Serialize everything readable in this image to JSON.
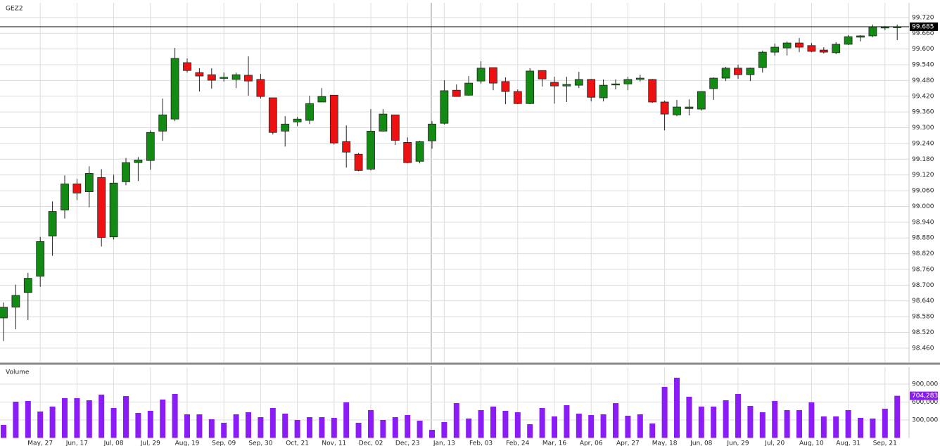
{
  "chart_data": [
    {
      "type": "candlestick",
      "title": "GEZ2",
      "categories": [
        null,
        null,
        null,
        "May, 27",
        null,
        null,
        "Jun, 17",
        null,
        null,
        "Jul, 08",
        null,
        null,
        "Jul, 29",
        null,
        null,
        "Aug, 19",
        null,
        null,
        "Sep, 09",
        null,
        null,
        "Sep, 30",
        null,
        null,
        "Oct, 21",
        null,
        null,
        "Nov, 11",
        null,
        null,
        "Dec, 02",
        null,
        null,
        "Dec, 23",
        null,
        null,
        "Jan, 13",
        null,
        null,
        "Feb, 03",
        null,
        null,
        "Feb, 24",
        null,
        null,
        "Mar, 16",
        null,
        null,
        "Apr, 06",
        null,
        null,
        "Apr, 27",
        null,
        null,
        "May, 18",
        null,
        null,
        "Jun, 08",
        null,
        null,
        "Jun, 29",
        null,
        null,
        "Jul, 20",
        null,
        null,
        "Aug, 10",
        null,
        null,
        "Aug, 31",
        null,
        null,
        "Sep, 21",
        null
      ],
      "open": [
        98.575,
        98.616,
        98.672,
        98.734,
        98.887,
        98.986,
        99.086,
        99.056,
        99.11,
        98.884,
        99.094,
        99.167,
        99.175,
        99.287,
        99.333,
        99.548,
        99.51,
        99.502,
        99.489,
        99.484,
        99.5,
        99.484,
        99.414,
        99.287,
        99.322,
        99.328,
        99.398,
        99.424,
        99.247,
        99.199,
        99.142,
        99.287,
        99.349,
        99.244,
        99.172,
        99.25,
        99.317,
        99.443,
        99.424,
        99.478,
        99.529,
        99.476,
        99.438,
        99.392,
        99.518,
        99.473,
        99.459,
        99.462,
        99.484,
        99.414,
        99.465,
        99.467,
        99.484,
        99.484,
        99.398,
        99.349,
        99.373,
        99.371,
        99.449,
        99.489,
        99.527,
        99.502,
        99.529,
        99.588,
        99.604,
        99.623,
        99.613,
        99.596,
        99.586,
        99.618,
        99.645,
        99.65,
        99.68,
        99.683
      ],
      "high": [
        98.634,
        98.702,
        98.747,
        98.884,
        99.019,
        99.118,
        99.105,
        99.153,
        99.142,
        99.121,
        99.185,
        99.188,
        99.29,
        99.411,
        99.604,
        99.564,
        99.527,
        99.527,
        99.51,
        99.51,
        99.572,
        99.505,
        99.414,
        99.344,
        99.341,
        99.422,
        99.451,
        99.424,
        99.309,
        99.204,
        99.371,
        99.371,
        99.349,
        99.263,
        99.25,
        99.325,
        99.481,
        99.465,
        99.497,
        99.553,
        99.529,
        99.492,
        99.446,
        99.527,
        99.518,
        99.494,
        99.494,
        99.513,
        99.486,
        99.484,
        99.484,
        99.494,
        99.502,
        99.486,
        99.403,
        99.406,
        99.408,
        99.438,
        99.492,
        99.532,
        99.54,
        99.529,
        99.594,
        99.621,
        99.629,
        99.642,
        99.623,
        99.607,
        99.626,
        99.653,
        99.653,
        99.693,
        99.688,
        99.693
      ],
      "low": [
        98.487,
        98.532,
        98.567,
        98.694,
        98.812,
        98.954,
        99.024,
        98.997,
        98.847,
        98.874,
        99.081,
        99.097,
        99.14,
        99.25,
        99.325,
        99.51,
        99.438,
        99.449,
        99.476,
        99.451,
        99.422,
        99.411,
        99.274,
        99.228,
        99.306,
        99.314,
        99.398,
        99.236,
        99.148,
        99.134,
        99.137,
        99.285,
        99.234,
        99.164,
        99.164,
        99.22,
        99.312,
        99.419,
        99.422,
        99.467,
        99.443,
        99.39,
        99.39,
        99.39,
        99.457,
        99.392,
        99.398,
        99.451,
        99.4,
        99.4,
        99.446,
        99.443,
        99.476,
        99.395,
        99.29,
        99.344,
        99.347,
        99.365,
        99.406,
        99.478,
        99.486,
        99.478,
        99.51,
        99.575,
        99.575,
        99.588,
        99.588,
        99.583,
        99.58,
        99.615,
        99.629,
        99.645,
        99.672,
        99.634
      ],
      "close": [
        98.616,
        98.661,
        98.726,
        98.866,
        98.981,
        99.086,
        99.051,
        99.126,
        98.882,
        99.089,
        99.167,
        99.177,
        99.282,
        99.349,
        99.564,
        99.518,
        99.497,
        99.481,
        99.492,
        99.502,
        99.478,
        99.419,
        99.282,
        99.314,
        99.333,
        99.392,
        99.419,
        99.242,
        99.207,
        99.137,
        99.287,
        99.352,
        99.252,
        99.167,
        99.247,
        99.314,
        99.441,
        99.419,
        99.47,
        99.527,
        99.47,
        99.438,
        99.392,
        99.516,
        99.486,
        99.459,
        99.465,
        99.484,
        99.416,
        99.462,
        99.467,
        99.484,
        99.489,
        99.398,
        99.352,
        99.379,
        99.379,
        99.438,
        99.489,
        99.527,
        99.502,
        99.527,
        99.588,
        99.607,
        99.623,
        99.607,
        99.591,
        99.588,
        99.618,
        99.647,
        99.65,
        99.685,
        99.685,
        99.685
      ],
      "up_color": "#138a13",
      "down_color": "#ee1111",
      "last_price": 99.685,
      "ylim": [
        98.406,
        99.776
      ],
      "yticks": [
        {
          "value": 99.72,
          "label": "99.720"
        },
        {
          "value": 99.66,
          "label": "99.660"
        },
        {
          "value": 99.6,
          "label": "99.600"
        },
        {
          "value": 99.54,
          "label": "99.540"
        },
        {
          "value": 99.48,
          "label": "99.480"
        },
        {
          "value": 99.42,
          "label": "99.420"
        },
        {
          "value": 99.36,
          "label": "99.360"
        },
        {
          "value": 99.3,
          "label": "99.300"
        },
        {
          "value": 99.24,
          "label": "99.240"
        },
        {
          "value": 99.18,
          "label": "99.180"
        },
        {
          "value": 99.12,
          "label": "99.120"
        },
        {
          "value": 99.06,
          "label": "99.060"
        },
        {
          "value": 99,
          "label": "99.000"
        },
        {
          "value": 98.94,
          "label": "98.940"
        },
        {
          "value": 98.88,
          "label": "98.880"
        },
        {
          "value": 98.82,
          "label": "98.820"
        },
        {
          "value": 98.76,
          "label": "98.760"
        },
        {
          "value": 98.7,
          "label": "98.700"
        },
        {
          "value": 98.64,
          "label": "98.640"
        },
        {
          "value": 98.58,
          "label": "98.580"
        },
        {
          "value": 98.52,
          "label": "98.520"
        },
        {
          "value": 98.46,
          "label": "98.460"
        }
      ],
      "grid": true
    },
    {
      "type": "bar",
      "title": "Volume",
      "color": "#8b1cf7",
      "values": [
        218000,
        606000,
        618000,
        441000,
        524000,
        665000,
        665000,
        629000,
        724000,
        500000,
        700000,
        418000,
        453000,
        641000,
        735000,
        394000,
        394000,
        312000,
        253000,
        394000,
        429000,
        347000,
        500000,
        406000,
        300000,
        347000,
        347000,
        335000,
        594000,
        253000,
        465000,
        300000,
        347000,
        382000,
        288000,
        135000,
        265000,
        582000,
        324000,
        465000,
        524000,
        453000,
        429000,
        229000,
        500000,
        359000,
        547000,
        406000,
        382000,
        394000,
        582000,
        371000,
        394000,
        241000,
        853000,
        1006000,
        688000,
        524000,
        524000,
        629000,
        735000,
        535000,
        429000,
        618000,
        465000,
        465000,
        594000,
        359000,
        359000,
        465000,
        335000,
        324000,
        488000,
        704283
      ],
      "last_label": "704,283",
      "ylim": [
        0,
        1182000
      ],
      "yticks": [
        {
          "value": 300000,
          "label": "300,000"
        },
        {
          "value": 600000,
          "label": "600,000"
        },
        {
          "value": 900000,
          "label": "900,000"
        }
      ],
      "grid": true
    }
  ]
}
